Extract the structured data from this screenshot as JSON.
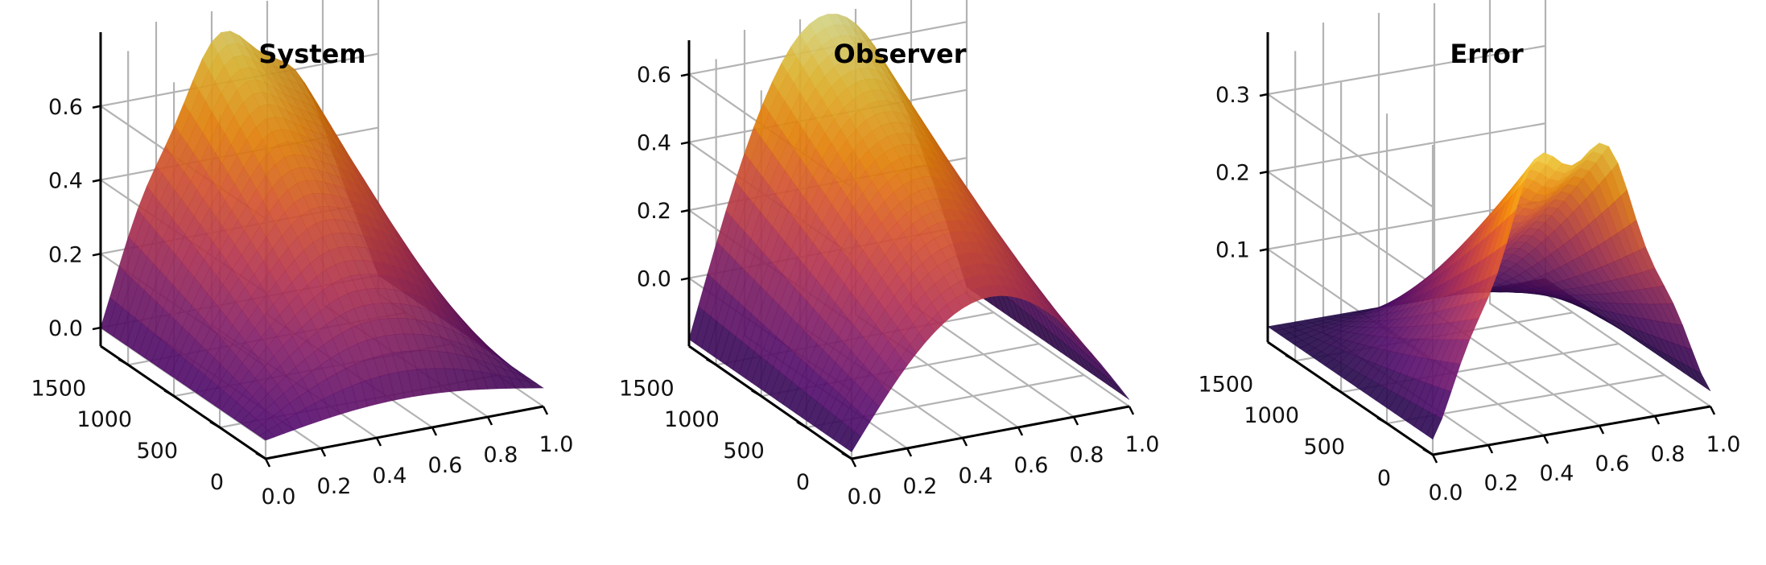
{
  "chart_data": [
    {
      "type": "surface",
      "title": "System",
      "xlabel": "",
      "ylabel": "",
      "zlabel": "",
      "xlim": [
        0.0,
        1.0
      ],
      "ylim": [
        0,
        1800
      ],
      "zlim": [
        -0.05,
        0.8
      ],
      "xticks": [
        "0.0",
        "0.2",
        "0.4",
        "0.6",
        "0.8",
        "1.0"
      ],
      "yticks": [
        "0",
        "500",
        "1000",
        "1500"
      ],
      "zticks": [
        "0.0",
        "0.2",
        "0.4",
        "0.6"
      ],
      "colormap": "inferno",
      "grid": true,
      "description_points": [
        {
          "x": 0.0,
          "y": 0,
          "z": 0.0
        },
        {
          "x": 0.5,
          "y": 0,
          "z": 0.05
        },
        {
          "x": 1.0,
          "y": 0,
          "z": 0.0
        },
        {
          "x": 0.0,
          "y": 1800,
          "z": 0.0
        },
        {
          "x": 0.5,
          "y": 1800,
          "z": 0.72
        },
        {
          "x": 1.0,
          "y": 1800,
          "z": 0.0
        }
      ]
    },
    {
      "type": "surface",
      "title": "Observer",
      "xlabel": "",
      "ylabel": "",
      "zlabel": "",
      "xlim": [
        0.0,
        1.0
      ],
      "ylim": [
        0,
        1800
      ],
      "zlim": [
        -0.2,
        0.7
      ],
      "xticks": [
        "0.0",
        "0.2",
        "0.4",
        "0.6",
        "0.8",
        "1.0"
      ],
      "yticks": [
        "0",
        "500",
        "1000",
        "1500"
      ],
      "zticks": [
        "0.0",
        "0.2",
        "0.4",
        "0.6"
      ],
      "colormap": "inferno",
      "grid": true,
      "description_points": [
        {
          "x": 0.0,
          "y": 0,
          "z": -0.18
        },
        {
          "x": 0.5,
          "y": 0,
          "z": 0.2
        },
        {
          "x": 1.0,
          "y": 0,
          "z": -0.18
        },
        {
          "x": 0.5,
          "y": 1800,
          "z": 0.7
        }
      ]
    },
    {
      "type": "surface",
      "title": "Error",
      "xlabel": "",
      "ylabel": "",
      "zlabel": "",
      "xlim": [
        0.0,
        1.0
      ],
      "ylim": [
        0,
        1800
      ],
      "zlim": [
        -0.02,
        0.38
      ],
      "xticks": [
        "0.0",
        "0.2",
        "0.4",
        "0.6",
        "0.8",
        "1.0"
      ],
      "yticks": [
        "0",
        "500",
        "1000",
        "1500"
      ],
      "zticks": [
        "0.1",
        "0.2",
        "0.3"
      ],
      "colormap": "inferno",
      "grid": true,
      "description_points": [
        {
          "x": 0.5,
          "y": 0,
          "z": 0.35
        },
        {
          "x": 0.0,
          "y": 0,
          "z": 0.0
        },
        {
          "x": 1.0,
          "y": 0,
          "z": 0.0
        },
        {
          "x": 0.5,
          "y": 1800,
          "z": 0.0
        }
      ]
    }
  ]
}
